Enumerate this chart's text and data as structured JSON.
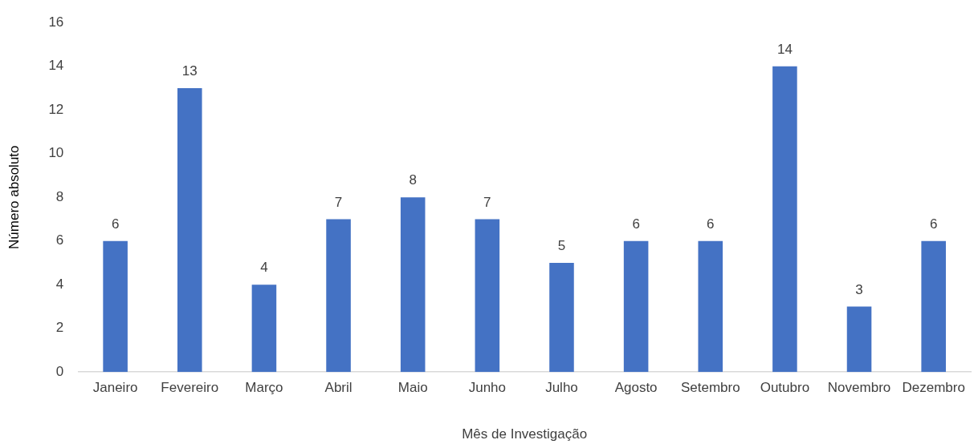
{
  "chart_data": {
    "type": "bar",
    "xlabel": "Mês de Investigação",
    "ylabel": "Número absoluto",
    "categories": [
      "Janeiro",
      "Fevereiro",
      "Março",
      "Abril",
      "Maio",
      "Junho",
      "Julho",
      "Agosto",
      "Setembro",
      "Outubro",
      "Novembro",
      "Dezembro"
    ],
    "values": [
      6,
      13,
      4,
      7,
      8,
      7,
      5,
      6,
      6,
      14,
      3,
      6
    ],
    "color": "#4472c4",
    "ylim": [
      0,
      16
    ],
    "yticks": [
      0,
      2,
      4,
      6,
      8,
      10,
      12,
      14,
      16
    ],
    "data_labels": true,
    "grid": false,
    "legend": false
  }
}
